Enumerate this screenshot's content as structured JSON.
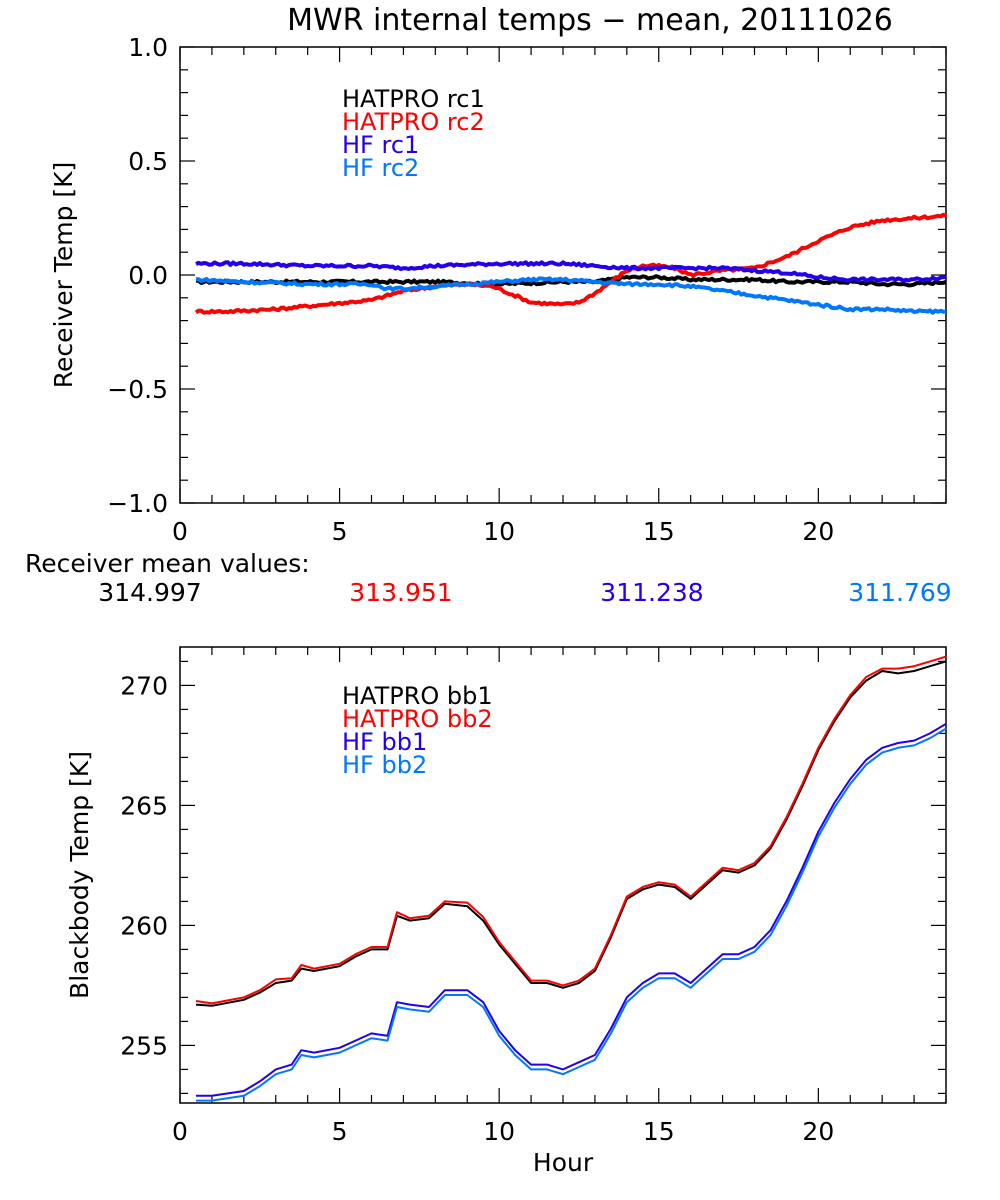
{
  "title": "MWR internal temps − mean, 20111026",
  "colors": {
    "hatpro_1": "#000000",
    "hatpro_2": "#ff0000",
    "hf_1": "#2200ee",
    "hf_2": "#0077ff"
  },
  "mean_values": {
    "label": "Receiver mean values:",
    "values": [
      {
        "name": "HATPRO rc1",
        "value": "314.997",
        "color": "#000000"
      },
      {
        "name": "HATPRO rc2",
        "value": "313.951",
        "color": "#ff0000"
      },
      {
        "name": "HF rc1",
        "value": "311.238",
        "color": "#2200ee"
      },
      {
        "name": "HF rc2",
        "value": "311.769",
        "color": "#0077ff"
      }
    ]
  },
  "chart_data": [
    {
      "type": "line",
      "title": "MWR internal temps − mean, 20111026",
      "xlabel": "",
      "ylabel": "Receiver Temp [K]",
      "xlim": [
        0,
        24
      ],
      "ylim": [
        -1.0,
        1.0
      ],
      "xticks": [
        "0",
        "5",
        "10",
        "15",
        "20"
      ],
      "xtick_values": [
        0,
        5,
        10,
        15,
        20
      ],
      "yticks": [
        "−1.0",
        "−0.5",
        "0.0",
        "0.5",
        "1.0"
      ],
      "ytick_values": [
        -1.0,
        -0.5,
        0.0,
        0.5,
        1.0
      ],
      "grid": false,
      "legend_position": "top-center",
      "series": [
        {
          "name": "HATPRO rc1",
          "color": "#000000",
          "x": [
            0.5,
            2,
            4,
            6,
            7,
            8,
            10,
            12,
            13,
            14,
            15,
            16,
            17,
            18,
            19,
            20,
            21,
            22,
            23,
            24
          ],
          "y": [
            -0.03,
            -0.03,
            -0.03,
            -0.03,
            -0.03,
            -0.03,
            -0.04,
            -0.03,
            -0.03,
            -0.01,
            -0.01,
            -0.02,
            -0.02,
            -0.02,
            -0.03,
            -0.03,
            -0.03,
            -0.04,
            -0.04,
            -0.03
          ]
        },
        {
          "name": "HATPRO rc2",
          "color": "#ff0000",
          "x": [
            0.5,
            1.5,
            3,
            4.5,
            6,
            7,
            8,
            9,
            9.8,
            10.5,
            11,
            12,
            12.5,
            13,
            13.5,
            14,
            14.5,
            15,
            15.5,
            16,
            16.5,
            17,
            18,
            19,
            20,
            21,
            22,
            23,
            24
          ],
          "y": [
            -0.16,
            -0.16,
            -0.15,
            -0.13,
            -0.11,
            -0.07,
            -0.05,
            -0.04,
            -0.05,
            -0.09,
            -0.12,
            -0.13,
            -0.12,
            -0.08,
            -0.03,
            0.02,
            0.04,
            0.04,
            0.03,
            0.0,
            0.01,
            0.02,
            0.03,
            0.08,
            0.15,
            0.21,
            0.24,
            0.25,
            0.26
          ]
        },
        {
          "name": "HF rc1",
          "color": "#2200ee",
          "x": [
            0.5,
            2,
            4,
            6,
            7,
            8,
            10,
            11,
            12,
            13,
            14,
            15,
            16,
            17,
            18,
            19,
            20,
            21,
            22,
            23,
            24
          ],
          "y": [
            0.05,
            0.05,
            0.04,
            0.04,
            0.03,
            0.04,
            0.05,
            0.05,
            0.05,
            0.04,
            0.03,
            0.03,
            0.03,
            0.03,
            0.02,
            0.01,
            -0.01,
            -0.02,
            -0.02,
            -0.02,
            -0.01
          ]
        },
        {
          "name": "HF rc2",
          "color": "#0077ff",
          "x": [
            0.5,
            2,
            4,
            6,
            6.5,
            7,
            8,
            10,
            11,
            12,
            13,
            14,
            15,
            16,
            17,
            18,
            19,
            20,
            21,
            22,
            23,
            24
          ],
          "y": [
            -0.02,
            -0.03,
            -0.04,
            -0.04,
            -0.06,
            -0.06,
            -0.05,
            -0.03,
            -0.02,
            -0.02,
            -0.03,
            -0.04,
            -0.04,
            -0.05,
            -0.07,
            -0.09,
            -0.11,
            -0.13,
            -0.15,
            -0.15,
            -0.16,
            -0.16
          ]
        }
      ]
    },
    {
      "type": "line",
      "title": "",
      "xlabel": "Hour",
      "ylabel": "Blackbody Temp [K]",
      "xlim": [
        0,
        24
      ],
      "ylim": [
        252.6,
        271.6
      ],
      "xticks": [
        "0",
        "5",
        "10",
        "15",
        "20"
      ],
      "xtick_values": [
        0,
        5,
        10,
        15,
        20
      ],
      "yticks": [
        "255",
        "260",
        "265",
        "270"
      ],
      "ytick_values": [
        255,
        260,
        265,
        270
      ],
      "grid": false,
      "legend_position": "top-center",
      "series": [
        {
          "name": "HATPRO bb1",
          "color": "#000000",
          "x": [
            0.5,
            1,
            2,
            2.5,
            3,
            3.5,
            3.8,
            4.2,
            5,
            5.5,
            6,
            6.5,
            6.8,
            7.2,
            7.8,
            8.3,
            9,
            9.5,
            10,
            10.5,
            11,
            11.5,
            12,
            12.5,
            13,
            13.5,
            14,
            14.5,
            15,
            15.5,
            16,
            16.5,
            17,
            17.5,
            18,
            18.5,
            19,
            19.5,
            20,
            20.5,
            21,
            21.5,
            22,
            22.5,
            23,
            23.5,
            24
          ],
          "y": [
            256.7,
            256.65,
            256.9,
            257.2,
            257.6,
            257.7,
            258.2,
            258.1,
            258.3,
            258.7,
            259.0,
            259.0,
            260.4,
            260.2,
            260.3,
            260.9,
            260.8,
            260.2,
            259.2,
            258.4,
            257.6,
            257.6,
            257.4,
            257.6,
            258.1,
            259.5,
            261.1,
            261.5,
            261.7,
            261.6,
            261.1,
            261.7,
            262.3,
            262.2,
            262.5,
            263.2,
            264.4,
            265.8,
            267.3,
            268.5,
            269.5,
            270.2,
            270.6,
            270.5,
            270.6,
            270.8,
            271.0
          ]
        },
        {
          "name": "HATPRO bb2",
          "color": "#ff0000",
          "x": [
            0.5,
            1,
            2,
            2.5,
            3,
            3.5,
            3.8,
            4.2,
            5,
            5.5,
            6,
            6.5,
            6.8,
            7.2,
            7.8,
            8.3,
            9,
            9.5,
            10,
            10.5,
            11,
            11.5,
            12,
            12.5,
            13,
            13.5,
            14,
            14.5,
            15,
            15.5,
            16,
            16.5,
            17,
            17.5,
            18,
            18.5,
            19,
            19.5,
            20,
            20.5,
            21,
            21.5,
            22,
            22.5,
            23,
            23.5,
            24
          ],
          "y": [
            256.85,
            256.75,
            257.0,
            257.3,
            257.75,
            257.8,
            258.35,
            258.2,
            258.4,
            258.8,
            259.1,
            259.1,
            260.55,
            260.3,
            260.4,
            261.0,
            260.95,
            260.35,
            259.3,
            258.5,
            257.7,
            257.7,
            257.5,
            257.7,
            258.2,
            259.6,
            261.2,
            261.6,
            261.8,
            261.7,
            261.2,
            261.8,
            262.4,
            262.3,
            262.6,
            263.3,
            264.5,
            265.9,
            267.4,
            268.6,
            269.6,
            270.35,
            270.7,
            270.7,
            270.8,
            271.0,
            271.2
          ]
        },
        {
          "name": "HF bb1",
          "color": "#2200ee",
          "x": [
            0.5,
            1,
            2,
            2.5,
            3,
            3.5,
            3.8,
            4.2,
            5,
            5.5,
            6,
            6.5,
            6.8,
            7.2,
            7.8,
            8.3,
            9,
            9.5,
            10,
            10.5,
            11,
            11.5,
            12,
            12.5,
            13,
            13.5,
            14,
            14.5,
            15,
            15.5,
            16,
            16.5,
            17,
            17.5,
            18,
            18.5,
            19,
            19.5,
            20,
            20.5,
            21,
            21.5,
            22,
            22.5,
            23,
            23.5,
            24
          ],
          "y": [
            252.9,
            252.9,
            253.1,
            253.5,
            254.0,
            254.2,
            254.8,
            254.7,
            254.9,
            255.2,
            255.5,
            255.4,
            256.8,
            256.7,
            256.6,
            257.3,
            257.3,
            256.8,
            255.6,
            254.8,
            254.2,
            254.2,
            254.0,
            254.3,
            254.6,
            255.7,
            257.0,
            257.6,
            258.0,
            258.0,
            257.6,
            258.2,
            258.8,
            258.8,
            259.1,
            259.8,
            261.0,
            262.4,
            263.9,
            265.1,
            266.1,
            266.9,
            267.4,
            267.6,
            267.7,
            268.0,
            268.4
          ]
        },
        {
          "name": "HF bb2",
          "color": "#0077ff",
          "x": [
            0.5,
            1,
            2,
            2.5,
            3,
            3.5,
            3.8,
            4.2,
            5,
            5.5,
            6,
            6.5,
            6.8,
            7.2,
            7.8,
            8.3,
            9,
            9.5,
            10,
            10.5,
            11,
            11.5,
            12,
            12.5,
            13,
            13.5,
            14,
            14.5,
            15,
            15.5,
            16,
            16.5,
            17,
            17.5,
            18,
            18.5,
            19,
            19.5,
            20,
            20.5,
            21,
            21.5,
            22,
            22.5,
            23,
            23.5,
            24
          ],
          "y": [
            252.7,
            252.7,
            252.9,
            253.3,
            253.8,
            254.0,
            254.6,
            254.5,
            254.7,
            255.0,
            255.3,
            255.2,
            256.6,
            256.5,
            256.4,
            257.1,
            257.1,
            256.6,
            255.4,
            254.6,
            254.0,
            254.0,
            253.8,
            254.1,
            254.4,
            255.5,
            256.8,
            257.4,
            257.8,
            257.8,
            257.4,
            258.0,
            258.6,
            258.6,
            258.9,
            259.6,
            260.8,
            262.2,
            263.7,
            264.9,
            265.9,
            266.7,
            267.2,
            267.4,
            267.5,
            267.8,
            268.2
          ]
        }
      ]
    }
  ]
}
